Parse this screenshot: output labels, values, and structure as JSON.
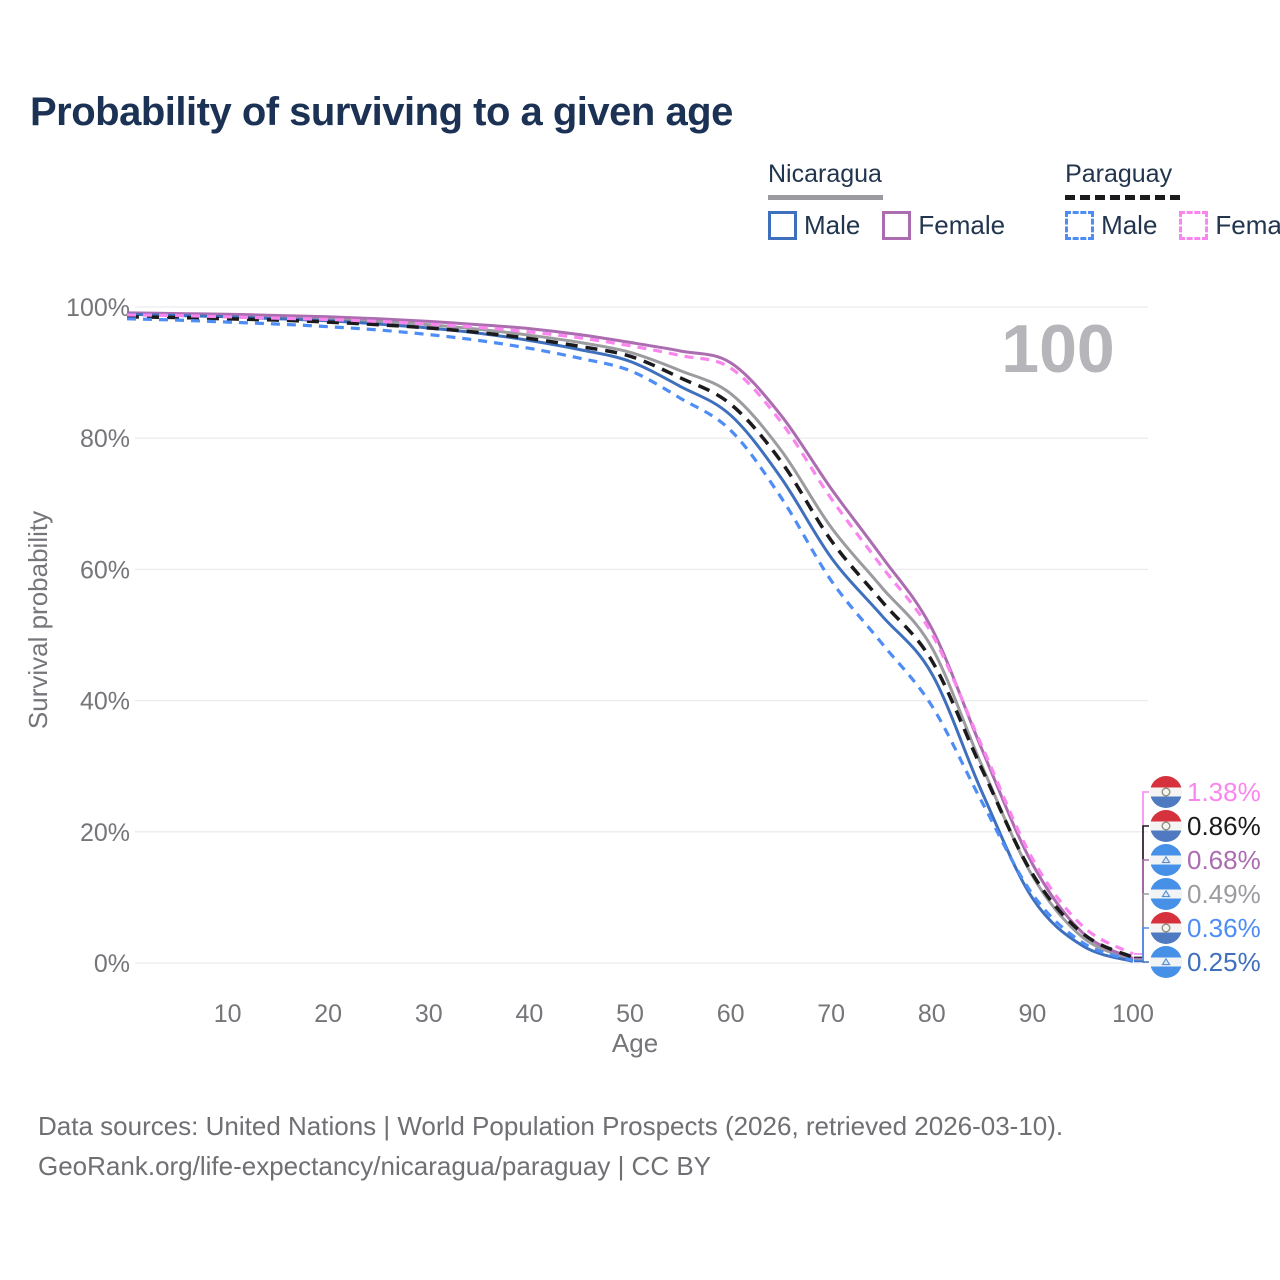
{
  "title": "Probability of surviving to a given age",
  "watermark": "100",
  "legend": {
    "groups": [
      {
        "label": "Nicaragua",
        "underline_style": "solid",
        "underline_color": "#9a9aa0",
        "items": [
          {
            "label": "Male",
            "color": "#3f70bd",
            "style": "solid"
          },
          {
            "label": "Female",
            "color": "#ab6cb0",
            "style": "solid"
          }
        ]
      },
      {
        "label": "Paraguay",
        "underline_style": "dashed",
        "underline_color": "#1b1b1d",
        "items": [
          {
            "label": "Male",
            "color": "#4d8df5",
            "style": "dashed"
          },
          {
            "label": "Female",
            "color": "#fa85ef",
            "style": "dashed"
          }
        ]
      }
    ]
  },
  "footer": {
    "line1": "Data sources: United Nations | World Population Prospects (2026, retrieved 2026-03-10).",
    "line2": "GeoRank.org/life-expectancy/nicaragua/paraguay | CC BY"
  },
  "chart_data": {
    "type": "line",
    "title": "Probability of surviving to a given age",
    "xlabel": "Age",
    "ylabel": "Survival probability",
    "xlim": [
      0,
      100
    ],
    "ylim": [
      0,
      100
    ],
    "x_ticks": [
      10,
      20,
      30,
      40,
      50,
      60,
      70,
      80,
      90,
      100
    ],
    "y_ticks": [
      0,
      20,
      40,
      60,
      80,
      100
    ],
    "y_tick_suffix": "%",
    "grid": "horizontal",
    "watermark": "100",
    "ages": [
      0,
      5,
      10,
      15,
      20,
      25,
      30,
      35,
      40,
      45,
      50,
      55,
      60,
      65,
      70,
      75,
      80,
      85,
      90,
      95,
      100
    ],
    "series": [
      {
        "name": "Nicaragua Both sexes",
        "country": "nicaragua",
        "sex": "both",
        "color": "#9b9ba0",
        "dash": "solid",
        "width": 3,
        "values": [
          99.0,
          98.9,
          98.7,
          98.5,
          98.2,
          97.8,
          97.3,
          96.6,
          95.7,
          94.6,
          93.1,
          90.3,
          86.8,
          78.2,
          66.4,
          57.3,
          48.1,
          30.0,
          13.3,
          3.9,
          0.49
        ],
        "end_label": "0.49%"
      },
      {
        "name": "Nicaragua Female",
        "country": "nicaragua",
        "sex": "female",
        "color": "#ab6cb0",
        "dash": "solid",
        "width": 3,
        "values": [
          99.1,
          99.0,
          98.9,
          98.7,
          98.5,
          98.2,
          97.8,
          97.3,
          96.7,
          95.8,
          94.6,
          93.3,
          91.5,
          83.5,
          72.3,
          62.0,
          51.0,
          32.5,
          15.1,
          4.6,
          0.68
        ],
        "end_label": "0.68%"
      },
      {
        "name": "Nicaragua Male",
        "country": "nicaragua",
        "sex": "male",
        "color": "#3f70bd",
        "dash": "solid",
        "width": 3,
        "values": [
          98.9,
          98.7,
          98.5,
          98.2,
          97.9,
          97.4,
          96.8,
          96.0,
          94.9,
          93.5,
          91.7,
          87.9,
          83.5,
          74.0,
          61.8,
          53.0,
          44.1,
          26.0,
          9.9,
          2.6,
          0.25
        ],
        "end_label": "0.25%"
      },
      {
        "name": "Paraguay Both sexes",
        "country": "paraguay",
        "sex": "both",
        "color": "#1b1b1d",
        "dash": "dashed",
        "width": 3.5,
        "values": [
          98.5,
          98.4,
          98.2,
          98.0,
          97.7,
          97.3,
          96.8,
          96.1,
          95.2,
          94.0,
          92.5,
          89.2,
          85.2,
          76.5,
          64.4,
          55.2,
          46.1,
          29.5,
          13.6,
          4.5,
          0.86
        ],
        "end_label": "0.86%"
      },
      {
        "name": "Paraguay Male",
        "country": "paraguay",
        "sex": "male",
        "color": "#4d8df5",
        "dash": "dashed",
        "width": 3.2,
        "values": [
          98.2,
          98.0,
          97.7,
          97.4,
          97.0,
          96.5,
          95.8,
          94.9,
          93.7,
          92.2,
          90.3,
          86.1,
          81.2,
          71.0,
          58.3,
          48.8,
          39.2,
          24.5,
          10.5,
          3.1,
          0.36
        ],
        "end_label": "0.36%"
      },
      {
        "name": "Paraguay Female",
        "country": "paraguay",
        "sex": "female",
        "color": "#fa85ef",
        "dash": "dashed",
        "width": 3.2,
        "values": [
          98.8,
          98.7,
          98.5,
          98.3,
          98.1,
          97.8,
          97.4,
          96.9,
          96.2,
          95.3,
          94.1,
          92.6,
          90.7,
          82.5,
          70.8,
          60.5,
          50.2,
          33.0,
          15.9,
          5.6,
          1.38
        ],
        "end_label": "1.38%"
      }
    ],
    "end_labels_top_to_bottom": [
      "1.38%",
      "0.86%",
      "0.68%",
      "0.49%",
      "0.36%",
      "0.25%"
    ],
    "flags": {
      "paraguay": {
        "top": "#d6323e",
        "middle": "#f4f4f4",
        "bottom": "#4f79c0"
      },
      "nicaragua": {
        "top": "#4690e8",
        "middle": "#f2f3f5",
        "bottom": "#4690e8"
      }
    },
    "colors": {
      "grid": "#ececef",
      "axis_text": "#75757a",
      "watermark": "#b5b5ba"
    }
  }
}
